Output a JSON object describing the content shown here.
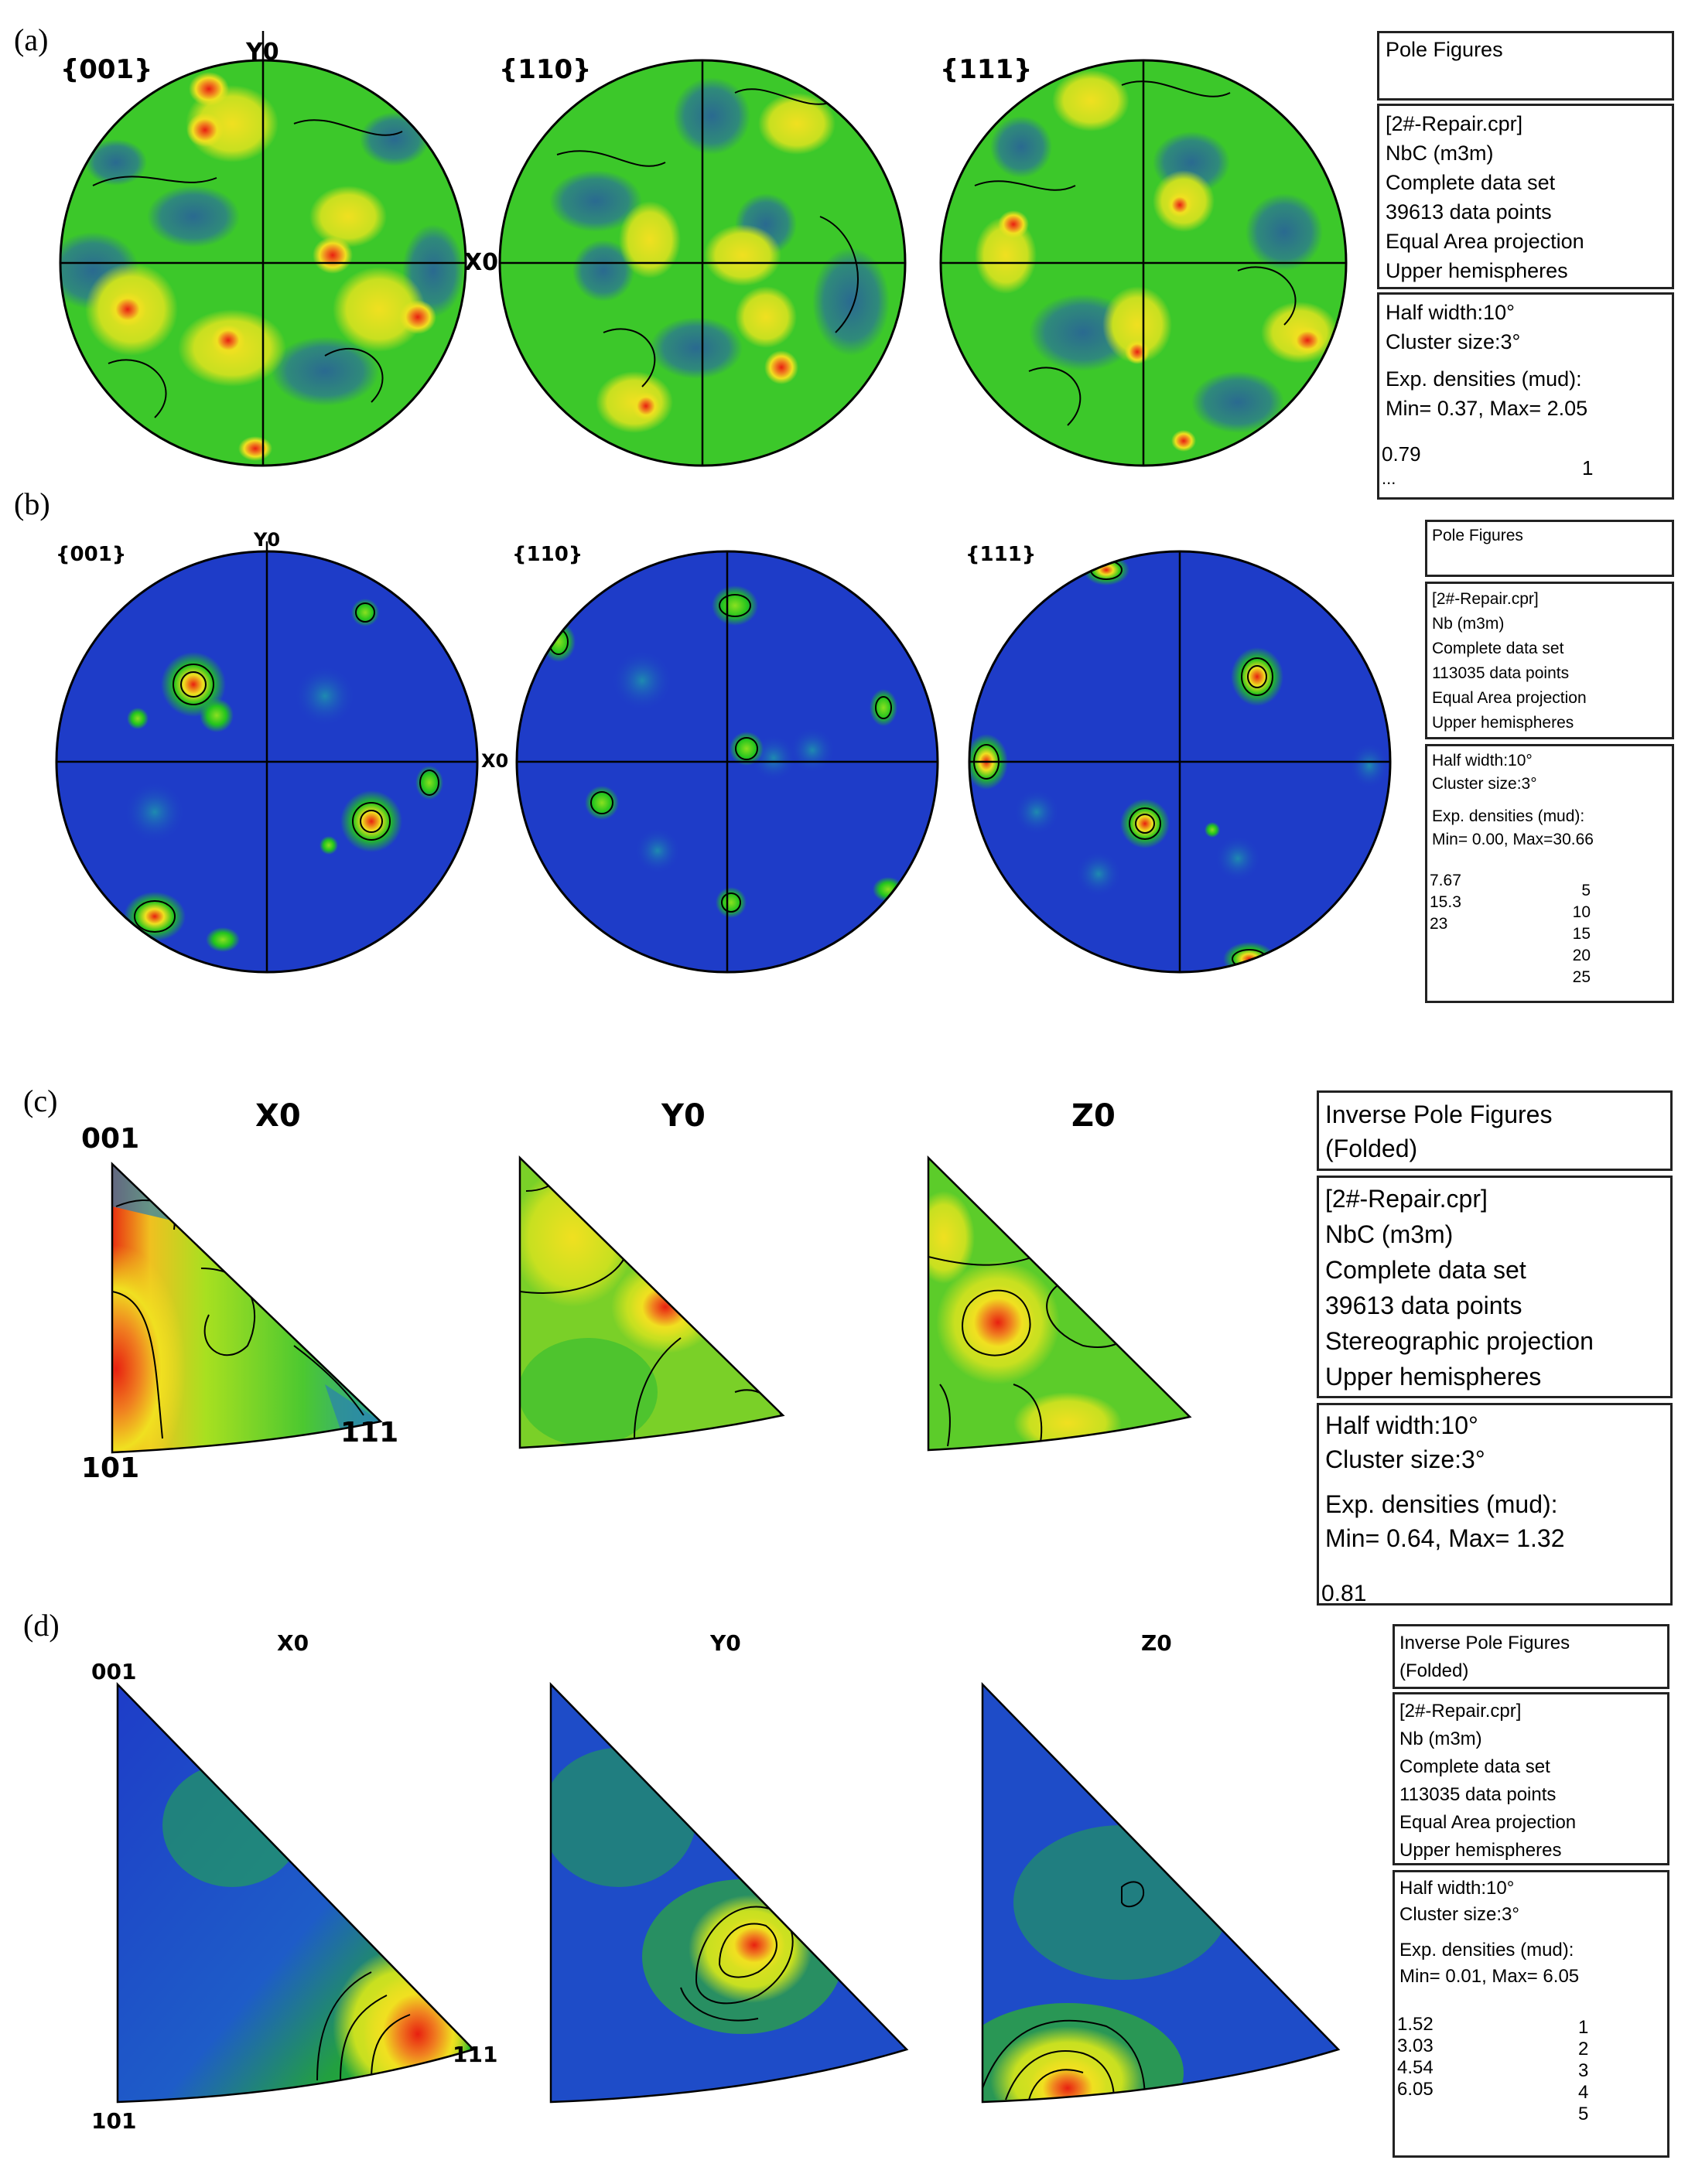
{
  "panels": {
    "a": {
      "label": "(a)",
      "titles": [
        "{001}",
        "{110}",
        "{111}"
      ],
      "axis_y": "Y0",
      "axis_x": "X0",
      "box1": "Pole Figures",
      "box2": [
        "[2#-Repair.cpr]",
        "NbC (m3m)",
        "Complete data set",
        "39613 data points",
        "Equal Area projection",
        "Upper hemispheres"
      ],
      "box3": [
        "Half width:10°",
        "Cluster size:3°",
        "",
        "Exp. densities (mud):",
        "Min= 0.37, Max= 2.05"
      ],
      "legend_levels": [
        "0.79"
      ],
      "legend_more": "...",
      "scale_ticks": [
        "1"
      ]
    },
    "b": {
      "label": "(b)",
      "titles": [
        "{001}",
        "{110}",
        "{111}"
      ],
      "axis_y": "Y0",
      "axis_x": "X0",
      "box1": "Pole Figures",
      "box2": [
        "[2#-Repair.cpr]",
        "Nb (m3m)",
        "Complete data set",
        "113035 data points",
        "Equal Area projection",
        "Upper hemispheres"
      ],
      "box3": [
        "Half width:10°",
        "Cluster size:3°",
        "",
        "Exp. densities (mud):",
        "Min= 0.00, Max=30.66"
      ],
      "legend_levels": [
        "7.67",
        "15.3",
        "23"
      ],
      "scale_ticks": [
        "5",
        "10",
        "15",
        "20",
        "25"
      ]
    },
    "c": {
      "label": "(c)",
      "titles": [
        "X0",
        "Y0",
        "Z0"
      ],
      "corner_top": "001",
      "corner_bl": "101",
      "corner_br": "111",
      "box1": [
        "Inverse Pole Figures",
        "(Folded)"
      ],
      "box2": [
        "[2#-Repair.cpr]",
        "NbC (m3m)",
        "Complete data set",
        "39613 data points",
        "Stereographic projection",
        "Upper hemispheres"
      ],
      "box3": [
        "Half width:10°",
        "Cluster size:3°",
        "",
        "Exp. densities (mud):",
        "Min= 0.64, Max= 1.32"
      ],
      "legend_levels": [
        "0.81"
      ]
    },
    "d": {
      "label": "(d)",
      "titles": [
        "X0",
        "Y0",
        "Z0"
      ],
      "corner_top": "001",
      "corner_bl": "101",
      "corner_br": "111",
      "box1": [
        "Inverse Pole Figures",
        "(Folded)"
      ],
      "box2": [
        "[2#-Repair.cpr]",
        "Nb (m3m)",
        "Complete data set",
        "113035 data points",
        "Equal Area projection",
        "Upper hemispheres"
      ],
      "box3": [
        "Half width:10°",
        "Cluster size:3°",
        "",
        "Exp. densities (mud):",
        "Min= 0.01, Max= 6.05"
      ],
      "legend_levels": [
        "1.52",
        "3.03",
        "4.54",
        "6.05"
      ],
      "scale_ticks": [
        "1",
        "2",
        "3",
        "4",
        "5"
      ]
    }
  },
  "colors": {
    "low": "#1e3cc8",
    "mid": "#22c41e",
    "high": "#f0e020",
    "peak": "#e82010"
  }
}
